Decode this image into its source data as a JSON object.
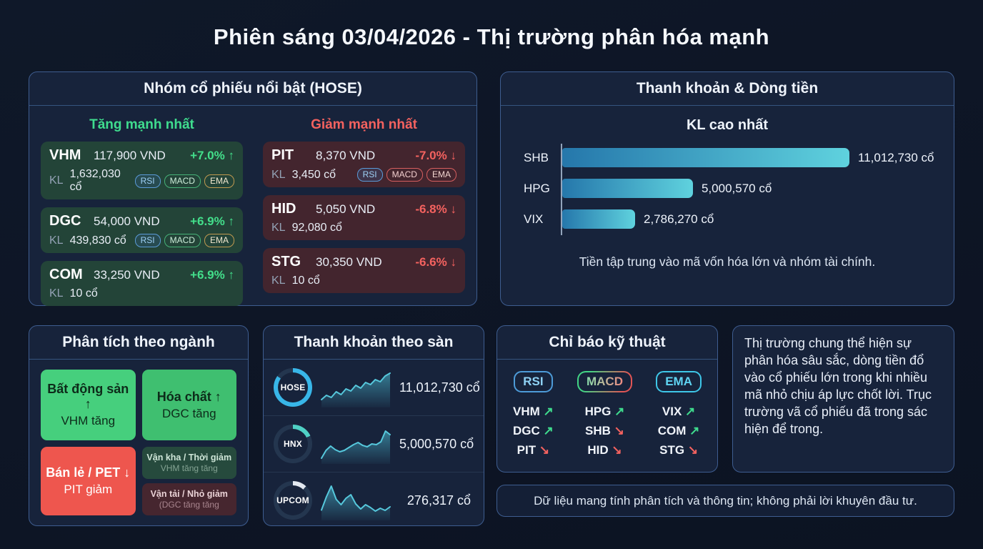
{
  "page": {
    "title": "Phiên sáng 03/04/2026 - Thị trường phân hóa mạnh"
  },
  "colors": {
    "up": "#3fdc8e",
    "down": "#f4625f",
    "accent": "#38b6e8",
    "bar_from": "#2577ab",
    "bar_to": "#5fd2de"
  },
  "featured": {
    "title": "Nhóm cổ phiếu nổi bật (HOSE)",
    "gainers": {
      "title": "Tăng mạnh nhất",
      "cards": [
        {
          "symbol": "VHM",
          "price": "117,900 VND",
          "change": "+7.0%",
          "arrow": "↑",
          "kl_label": "KL",
          "volume": "1,632,030 cổ",
          "badges": [
            "RSI",
            "MACD",
            "EMA"
          ]
        },
        {
          "symbol": "DGC",
          "price": "54,000 VND",
          "change": "+6.9%",
          "arrow": "↑",
          "kl_label": "KL",
          "volume": "439,830 cổ",
          "badges": [
            "RSI",
            "MACD",
            "EMA"
          ]
        },
        {
          "symbol": "COM",
          "price": "33,250 VND",
          "change": "+6.9%",
          "arrow": "↑",
          "kl_label": "KL",
          "volume": "10 cổ",
          "badges": []
        }
      ]
    },
    "losers": {
      "title": "Giảm mạnh nhất",
      "cards": [
        {
          "symbol": "PIT",
          "price": "8,370 VND",
          "change": "-7.0%",
          "arrow": "↓",
          "kl_label": "KL",
          "volume": "3,450 cổ",
          "badges": [
            "RSI",
            "MACD",
            "EMA"
          ]
        },
        {
          "symbol": "HID",
          "price": "5,050 VND",
          "change": "-6.8%",
          "arrow": "↓",
          "kl_label": "KL",
          "volume": "92,080 cổ",
          "badges": []
        },
        {
          "symbol": "STG",
          "price": "30,350 VND",
          "change": "-6.6%",
          "arrow": "↓",
          "kl_label": "KL",
          "volume": "10 cổ",
          "badges": []
        }
      ]
    }
  },
  "liquidity": {
    "title": "Thanh khoản & Dòng tiền",
    "subtitle": "KL cao nhất",
    "note": "Tiền tập trung vào mã vốn hóa lớn và nhóm tài chính."
  },
  "sector": {
    "title": "Phân tích theo ngành",
    "tiles": [
      {
        "title": "Bất động sản ↑",
        "sub": "VHM tăng"
      },
      {
        "title": "Hóa chất ↑",
        "sub": "DGC tăng"
      },
      {
        "title": "Bán lẻ / PET ↓",
        "sub": "PIT giảm"
      },
      {
        "title": "Vận kha / Thời giảm",
        "sub": "VHM tăng tăng"
      },
      {
        "title": "Vận tải / Nhỏ giảm",
        "sub": "(DGC tăng tăng"
      }
    ]
  },
  "exchanges": {
    "title": "Thanh khoản theo sàn",
    "rows": [
      {
        "name": "HOSE",
        "value": "11,012,730 cổ"
      },
      {
        "name": "HNX",
        "value": "5,000,570 cổ"
      },
      {
        "name": "UPCOM",
        "value": "276,317 cổ"
      }
    ]
  },
  "indicators": {
    "title": "Chỉ báo kỹ thuật",
    "groups": [
      {
        "badge": "RSI",
        "items": [
          {
            "symbol": "VHM",
            "arrow": "↗",
            "dir": "up"
          },
          {
            "symbol": "DGC",
            "arrow": "↗",
            "dir": "up"
          },
          {
            "symbol": "PIT",
            "arrow": "↘",
            "dir": "down"
          }
        ]
      },
      {
        "badge": "MACD",
        "items": [
          {
            "symbol": "HPG",
            "arrow": "↗",
            "dir": "up"
          },
          {
            "symbol": "SHB",
            "arrow": "↘",
            "dir": "down"
          },
          {
            "symbol": "HID",
            "arrow": "↘",
            "dir": "down"
          }
        ]
      },
      {
        "badge": "EMA",
        "items": [
          {
            "symbol": "VIX",
            "arrow": "↗",
            "dir": "up"
          },
          {
            "symbol": "COM",
            "arrow": "↗",
            "dir": "up"
          },
          {
            "symbol": "STG",
            "arrow": "↘",
            "dir": "down"
          }
        ]
      }
    ]
  },
  "summary": {
    "text": "Thị trường chung thể hiện sự phân hóa sâu sắc, dòng tiền đổ vào cổ phiếu lớn trong khi nhiều mã nhỏ chịu áp lực chốt lời. Trục trường vã cổ phiếu đã trong sác hiện để trong."
  },
  "disclaimer": {
    "text": "Dữ liệu mang tính phân tích và thông tin; không phải lời khuyên đầu tư."
  },
  "chart_data": [
    {
      "type": "bar",
      "title": "KL cao nhất",
      "orientation": "horizontal",
      "categories": [
        "SHB",
        "HPG",
        "VIX"
      ],
      "values": [
        11012730,
        5000570,
        2786270
      ],
      "value_labels": [
        "11,012,730 cổ",
        "5,000,570 cổ",
        "2,786,270 cổ"
      ],
      "unit": "cổ",
      "xlim": [
        0,
        11012730
      ],
      "grid": false,
      "legend": "none"
    },
    {
      "type": "area",
      "name": "HOSE",
      "values": [
        18,
        30,
        24,
        40,
        32,
        48,
        42,
        58,
        50,
        66,
        60,
        74,
        68,
        84,
        92
      ]
    },
    {
      "type": "area",
      "name": "HNX",
      "values": [
        12,
        34,
        46,
        36,
        30,
        34,
        42,
        50,
        56,
        48,
        44,
        52,
        50,
        58,
        88,
        78
      ]
    },
    {
      "type": "area",
      "name": "UPCOM",
      "values": [
        25,
        62,
        92,
        55,
        40,
        58,
        68,
        42,
        28,
        40,
        32,
        22,
        30,
        24,
        34
      ]
    },
    {
      "type": "donut",
      "name": "HOSE",
      "pct": 85,
      "color": "#38b6e8"
    },
    {
      "type": "donut",
      "name": "HNX",
      "pct": 18,
      "color": "#4fd1c5"
    },
    {
      "type": "donut",
      "name": "UPCOM",
      "pct": 12,
      "color": "#e2e8f0"
    }
  ]
}
